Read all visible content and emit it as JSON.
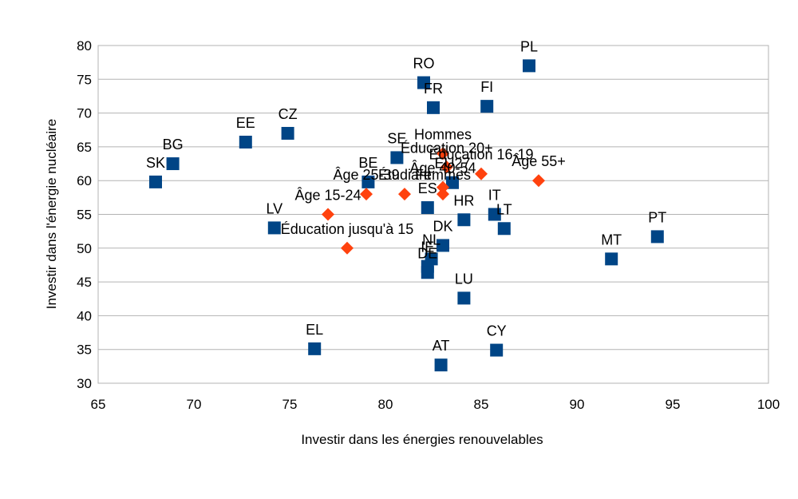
{
  "chart_data": {
    "type": "scatter",
    "xlabel": "Investir dans les énergies renouvelables",
    "ylabel": "Investir dans l'énergie nucléaire",
    "xlim": [
      65,
      100
    ],
    "ylim": [
      30,
      80
    ],
    "x_ticks": [
      "65",
      "70",
      "75",
      "80",
      "85",
      "90",
      "95",
      "100"
    ],
    "y_ticks": [
      "30",
      "35",
      "40",
      "45",
      "50",
      "55",
      "60",
      "65",
      "70",
      "75",
      "80"
    ],
    "grid": "horizontal",
    "legend": "none",
    "colors": {
      "countries": "#004586",
      "groups": "#ff420e"
    },
    "series": [
      {
        "marker": "square",
        "points": [
          {
            "label": "PL",
            "x": 87.5,
            "y": 77
          },
          {
            "label": "RO",
            "x": 82.0,
            "y": 74.5
          },
          {
            "label": "FR",
            "x": 82.5,
            "y": 70.8
          },
          {
            "label": "FI",
            "x": 85.3,
            "y": 71
          },
          {
            "label": "CZ",
            "x": 74.9,
            "y": 67
          },
          {
            "label": "EE",
            "x": 72.7,
            "y": 65.7
          },
          {
            "label": "BG",
            "x": 68.9,
            "y": 62.5
          },
          {
            "label": "SK",
            "x": 68.0,
            "y": 59.8
          },
          {
            "label": "SE",
            "x": 80.6,
            "y": 63.4
          },
          {
            "label": "BE",
            "x": 79.1,
            "y": 59.8
          },
          {
            "label": "EU27",
            "x": 83.5,
            "y": 59.7
          },
          {
            "label": "ES",
            "x": 82.2,
            "y": 56
          },
          {
            "label": "HR",
            "x": 84.1,
            "y": 54.2
          },
          {
            "label": "IT",
            "x": 85.7,
            "y": 55
          },
          {
            "label": "LT",
            "x": 86.2,
            "y": 52.9
          },
          {
            "label": "LV",
            "x": 74.2,
            "y": 53
          },
          {
            "label": "DK",
            "x": 83.0,
            "y": 50.4
          },
          {
            "label": "NL",
            "x": 82.4,
            "y": 48.4
          },
          {
            "label": "IE",
            "x": 82.2,
            "y": 47.3
          },
          {
            "label": "DE",
            "x": 82.2,
            "y": 46.4
          },
          {
            "label": "LU",
            "x": 84.1,
            "y": 42.6
          },
          {
            "label": "MT",
            "x": 91.8,
            "y": 48.4
          },
          {
            "label": "PT",
            "x": 94.2,
            "y": 51.7
          },
          {
            "label": "EL",
            "x": 76.3,
            "y": 35.1
          },
          {
            "label": "AT",
            "x": 82.9,
            "y": 32.7
          },
          {
            "label": "CY",
            "x": 85.8,
            "y": 34.9
          }
        ]
      },
      {
        "marker": "diamond",
        "points": [
          {
            "label": "Hommes",
            "x": 83.0,
            "y": 64
          },
          {
            "label": "Éducation 20+",
            "x": 83.2,
            "y": 62
          },
          {
            "label": "Âge 55+",
            "x": 88.0,
            "y": 60
          },
          {
            "label": "Éducation 16-19",
            "x": 85.0,
            "y": 61
          },
          {
            "label": "Âge 40-54",
            "x": 83.0,
            "y": 59
          },
          {
            "label": "Âge 25-39",
            "x": 79.0,
            "y": 58
          },
          {
            "label": "Étudiant",
            "x": 81.0,
            "y": 58
          },
          {
            "label": "Âge 15-24",
            "x": 77.0,
            "y": 55
          },
          {
            "label": "Femmes",
            "x": 83.0,
            "y": 58
          },
          {
            "label": "Éducation jusqu'à 15 ",
            "x": 78.0,
            "y": 50
          }
        ]
      }
    ]
  }
}
